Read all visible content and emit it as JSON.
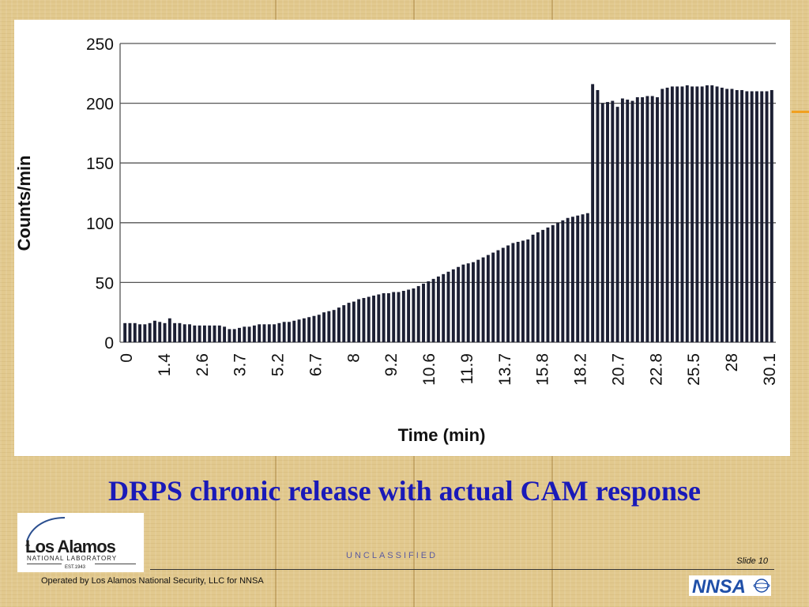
{
  "slide": {
    "title": "DRPS chronic release with actual CAM response",
    "classification": "UNCLASSIFIED",
    "slide_number": "Slide 10",
    "operator": "Operated by Los Alamos National Security, LLC for NNSA",
    "logo": {
      "name": "Los Alamos",
      "subtitle": "NATIONAL LABORATORY",
      "est": "EST.1943"
    },
    "nnsa_logo_text": "NNSA"
  },
  "colors": {
    "title": "#1a1ab8",
    "bar": "#1c1f33",
    "grid": "#555555"
  },
  "chart_data": {
    "type": "bar",
    "title": "",
    "xlabel": "Time (min)",
    "ylabel": "Counts/min",
    "ylim": [
      0,
      250
    ],
    "yticks": [
      0,
      50,
      100,
      150,
      200,
      250
    ],
    "xticklabels": [
      "0",
      "1.4",
      "2.6",
      "3.7",
      "5.2",
      "6.7",
      "8",
      "9.2",
      "10.6",
      "11.9",
      "13.7",
      "15.8",
      "18.2",
      "20.7",
      "22.8",
      "25.5",
      "28",
      "30.1"
    ],
    "grid": "horizontal",
    "values": [
      16,
      16,
      16,
      15,
      15,
      16,
      18,
      17,
      16,
      20,
      16,
      16,
      15,
      15,
      14,
      14,
      14,
      14,
      14,
      14,
      13,
      11,
      11,
      12,
      13,
      13,
      14,
      15,
      15,
      15,
      15,
      16,
      17,
      17,
      18,
      19,
      20,
      21,
      22,
      23,
      25,
      26,
      27,
      29,
      31,
      33,
      34,
      36,
      37,
      38,
      39,
      40,
      41,
      41,
      42,
      42,
      43,
      44,
      45,
      47,
      49,
      51,
      53,
      55,
      57,
      59,
      61,
      63,
      65,
      66,
      67,
      69,
      71,
      73,
      75,
      77,
      79,
      81,
      83,
      84,
      85,
      86,
      90,
      92,
      94,
      96,
      98,
      100,
      102,
      104,
      105,
      106,
      107,
      108,
      216,
      211,
      200,
      201,
      202,
      197,
      204,
      203,
      202,
      205,
      205,
      206,
      206,
      205,
      212,
      213,
      214,
      214,
      214,
      215,
      214,
      214,
      214,
      215,
      215,
      214,
      213,
      212,
      212,
      211,
      211,
      210,
      210,
      210,
      210,
      210,
      211
    ]
  }
}
